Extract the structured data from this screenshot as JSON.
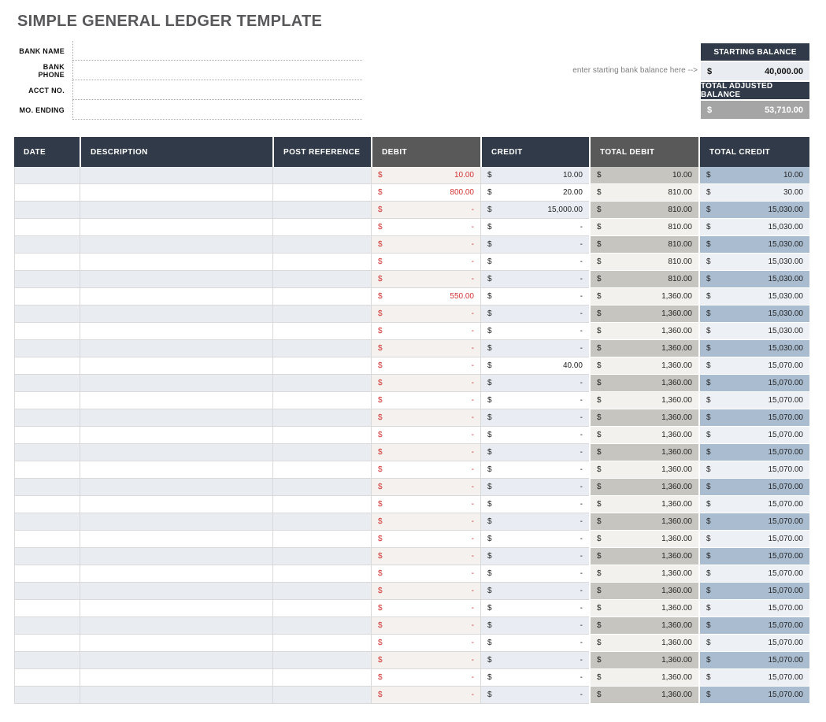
{
  "title": "SIMPLE GENERAL LEDGER TEMPLATE",
  "bank_info": {
    "fields": [
      {
        "label": "BANK NAME",
        "value": ""
      },
      {
        "label": "BANK PHONE",
        "value": ""
      },
      {
        "label": "ACCT NO.",
        "value": ""
      },
      {
        "label": "MO. ENDING",
        "value": ""
      }
    ]
  },
  "balance_panel": {
    "hint": "enter starting bank balance here -->",
    "starting_balance": {
      "label": "STARTING BALANCE",
      "currency": "$",
      "value": "40,000.00"
    },
    "total_adjusted_balance": {
      "label": "TOTAL ADJUSTED BALANCE",
      "currency": "$",
      "value": "53,710.00"
    }
  },
  "ledger_table": {
    "currency": "$",
    "columns": [
      {
        "label": "DATE",
        "theme": "navy"
      },
      {
        "label": "DESCRIPTION",
        "theme": "navy"
      },
      {
        "label": "POST REFERENCE",
        "theme": "navy"
      },
      {
        "label": "DEBIT",
        "theme": "gray"
      },
      {
        "label": "CREDIT",
        "theme": "navy"
      },
      {
        "label": "TOTAL DEBIT",
        "theme": "gray"
      },
      {
        "label": "TOTAL CREDIT",
        "theme": "navy"
      }
    ],
    "rows": [
      {
        "date": "",
        "description": "",
        "post_reference": "",
        "debit": "10.00",
        "credit": "10.00",
        "total_debit": "10.00",
        "total_credit": "10.00"
      },
      {
        "date": "",
        "description": "",
        "post_reference": "",
        "debit": "800.00",
        "credit": "20.00",
        "total_debit": "810.00",
        "total_credit": "30.00"
      },
      {
        "date": "",
        "description": "",
        "post_reference": "",
        "debit": "-",
        "credit": "15,000.00",
        "total_debit": "810.00",
        "total_credit": "15,030.00"
      },
      {
        "date": "",
        "description": "",
        "post_reference": "",
        "debit": "-",
        "credit": "-",
        "total_debit": "810.00",
        "total_credit": "15,030.00"
      },
      {
        "date": "",
        "description": "",
        "post_reference": "",
        "debit": "-",
        "credit": "-",
        "total_debit": "810.00",
        "total_credit": "15,030.00"
      },
      {
        "date": "",
        "description": "",
        "post_reference": "",
        "debit": "-",
        "credit": "-",
        "total_debit": "810.00",
        "total_credit": "15,030.00"
      },
      {
        "date": "",
        "description": "",
        "post_reference": "",
        "debit": "-",
        "credit": "-",
        "total_debit": "810.00",
        "total_credit": "15,030.00"
      },
      {
        "date": "",
        "description": "",
        "post_reference": "",
        "debit": "550.00",
        "credit": "-",
        "total_debit": "1,360.00",
        "total_credit": "15,030.00"
      },
      {
        "date": "",
        "description": "",
        "post_reference": "",
        "debit": "-",
        "credit": "-",
        "total_debit": "1,360.00",
        "total_credit": "15,030.00"
      },
      {
        "date": "",
        "description": "",
        "post_reference": "",
        "debit": "-",
        "credit": "-",
        "total_debit": "1,360.00",
        "total_credit": "15,030.00"
      },
      {
        "date": "",
        "description": "",
        "post_reference": "",
        "debit": "-",
        "credit": "-",
        "total_debit": "1,360.00",
        "total_credit": "15,030.00"
      },
      {
        "date": "",
        "description": "",
        "post_reference": "",
        "debit": "-",
        "credit": "40.00",
        "total_debit": "1,360.00",
        "total_credit": "15,070.00"
      },
      {
        "date": "",
        "description": "",
        "post_reference": "",
        "debit": "-",
        "credit": "-",
        "total_debit": "1,360.00",
        "total_credit": "15,070.00"
      },
      {
        "date": "",
        "description": "",
        "post_reference": "",
        "debit": "-",
        "credit": "-",
        "total_debit": "1,360.00",
        "total_credit": "15,070.00"
      },
      {
        "date": "",
        "description": "",
        "post_reference": "",
        "debit": "-",
        "credit": "-",
        "total_debit": "1,360.00",
        "total_credit": "15,070.00"
      },
      {
        "date": "",
        "description": "",
        "post_reference": "",
        "debit": "-",
        "credit": "-",
        "total_debit": "1,360.00",
        "total_credit": "15,070.00"
      },
      {
        "date": "",
        "description": "",
        "post_reference": "",
        "debit": "-",
        "credit": "-",
        "total_debit": "1,360.00",
        "total_credit": "15,070.00"
      },
      {
        "date": "",
        "description": "",
        "post_reference": "",
        "debit": "-",
        "credit": "-",
        "total_debit": "1,360.00",
        "total_credit": "15,070.00"
      },
      {
        "date": "",
        "description": "",
        "post_reference": "",
        "debit": "-",
        "credit": "-",
        "total_debit": "1,360.00",
        "total_credit": "15,070.00"
      },
      {
        "date": "",
        "description": "",
        "post_reference": "",
        "debit": "-",
        "credit": "-",
        "total_debit": "1,360.00",
        "total_credit": "15,070.00"
      },
      {
        "date": "",
        "description": "",
        "post_reference": "",
        "debit": "-",
        "credit": "-",
        "total_debit": "1,360.00",
        "total_credit": "15,070.00"
      },
      {
        "date": "",
        "description": "",
        "post_reference": "",
        "debit": "-",
        "credit": "-",
        "total_debit": "1,360.00",
        "total_credit": "15,070.00"
      },
      {
        "date": "",
        "description": "",
        "post_reference": "",
        "debit": "-",
        "credit": "-",
        "total_debit": "1,360.00",
        "total_credit": "15,070.00"
      },
      {
        "date": "",
        "description": "",
        "post_reference": "",
        "debit": "-",
        "credit": "-",
        "total_debit": "1,360.00",
        "total_credit": "15,070.00"
      },
      {
        "date": "",
        "description": "",
        "post_reference": "",
        "debit": "-",
        "credit": "-",
        "total_debit": "1,360.00",
        "total_credit": "15,070.00"
      },
      {
        "date": "",
        "description": "",
        "post_reference": "",
        "debit": "-",
        "credit": "-",
        "total_debit": "1,360.00",
        "total_credit": "15,070.00"
      },
      {
        "date": "",
        "description": "",
        "post_reference": "",
        "debit": "-",
        "credit": "-",
        "total_debit": "1,360.00",
        "total_credit": "15,070.00"
      },
      {
        "date": "",
        "description": "",
        "post_reference": "",
        "debit": "-",
        "credit": "-",
        "total_debit": "1,360.00",
        "total_credit": "15,070.00"
      },
      {
        "date": "",
        "description": "",
        "post_reference": "",
        "debit": "-",
        "credit": "-",
        "total_debit": "1,360.00",
        "total_credit": "15,070.00"
      },
      {
        "date": "",
        "description": "",
        "post_reference": "",
        "debit": "-",
        "credit": "-",
        "total_debit": "1,360.00",
        "total_credit": "15,070.00"
      },
      {
        "date": "",
        "description": "",
        "post_reference": "",
        "debit": "-",
        "credit": "-",
        "total_debit": "1,360.00",
        "total_credit": "15,070.00"
      }
    ]
  },
  "colors": {
    "header_navy": "#303a48",
    "header_gray": "#595959",
    "debit_red": "#d23434",
    "total_debit_fill": "#c6c5c0",
    "total_credit_fill": "#a9bcd0",
    "adjusted_balance_fill": "#a5a5a5",
    "row_tint": "#e9ecf1"
  }
}
